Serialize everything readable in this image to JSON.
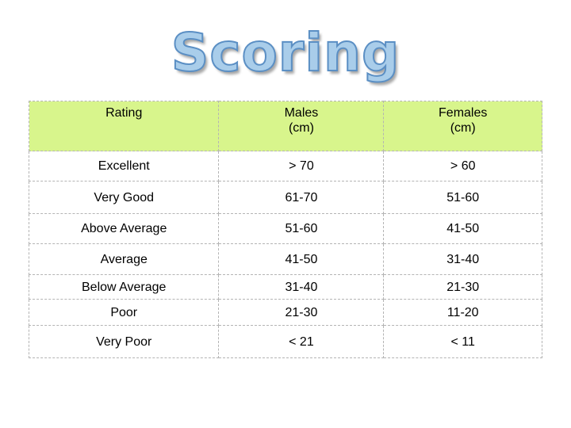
{
  "title": "Scoring",
  "table": {
    "headers": [
      "Rating",
      "Males\n(cm)",
      "Females\n(cm)"
    ],
    "rows": [
      [
        "Excellent",
        "> 70",
        "> 60"
      ],
      [
        "Very Good",
        "61-70",
        "51-60"
      ],
      [
        "Above Average",
        "51-60",
        "41-50"
      ],
      [
        "Average",
        "41-50",
        "31-40"
      ],
      [
        "Below Average",
        "31-40",
        "21-30"
      ],
      [
        "Poor",
        "21-30",
        "11-20"
      ],
      [
        "Very Poor",
        "< 21",
        "< 11"
      ]
    ]
  },
  "colors": {
    "header_bg": "#d8f58c",
    "title_fill": "#a9cdea",
    "title_outline": "#5b8fc4",
    "grid": "#b4b4b4"
  }
}
